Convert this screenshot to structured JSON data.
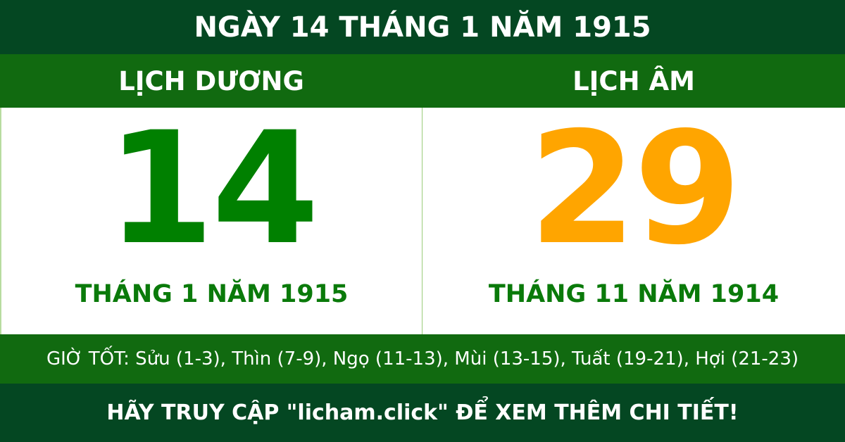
{
  "header": {
    "title": "NGÀY 14 THÁNG 1 NĂM 1915"
  },
  "solar": {
    "label": "LỊCH DƯƠNG",
    "day": "14",
    "month_year": "THÁNG 1 NĂM 1915",
    "color": "#008000"
  },
  "lunar": {
    "label": "LỊCH ÂM",
    "day": "29",
    "month_year": "THÁNG 11 NĂM 1914",
    "color": "#FFA500"
  },
  "good_hours": "GIỜ TỐT: Sửu (1-3), Thìn (7-9), Ngọ (11-13), Mùi (13-15), Tuất (19-21), Hợi (21-23)",
  "footer": {
    "cta": "HÃY TRUY CẬP \"licham.click\" ĐỂ XEM THÊM CHI TIẾT!"
  },
  "colors": {
    "dark_green": "#044722",
    "green": "#116A10"
  }
}
